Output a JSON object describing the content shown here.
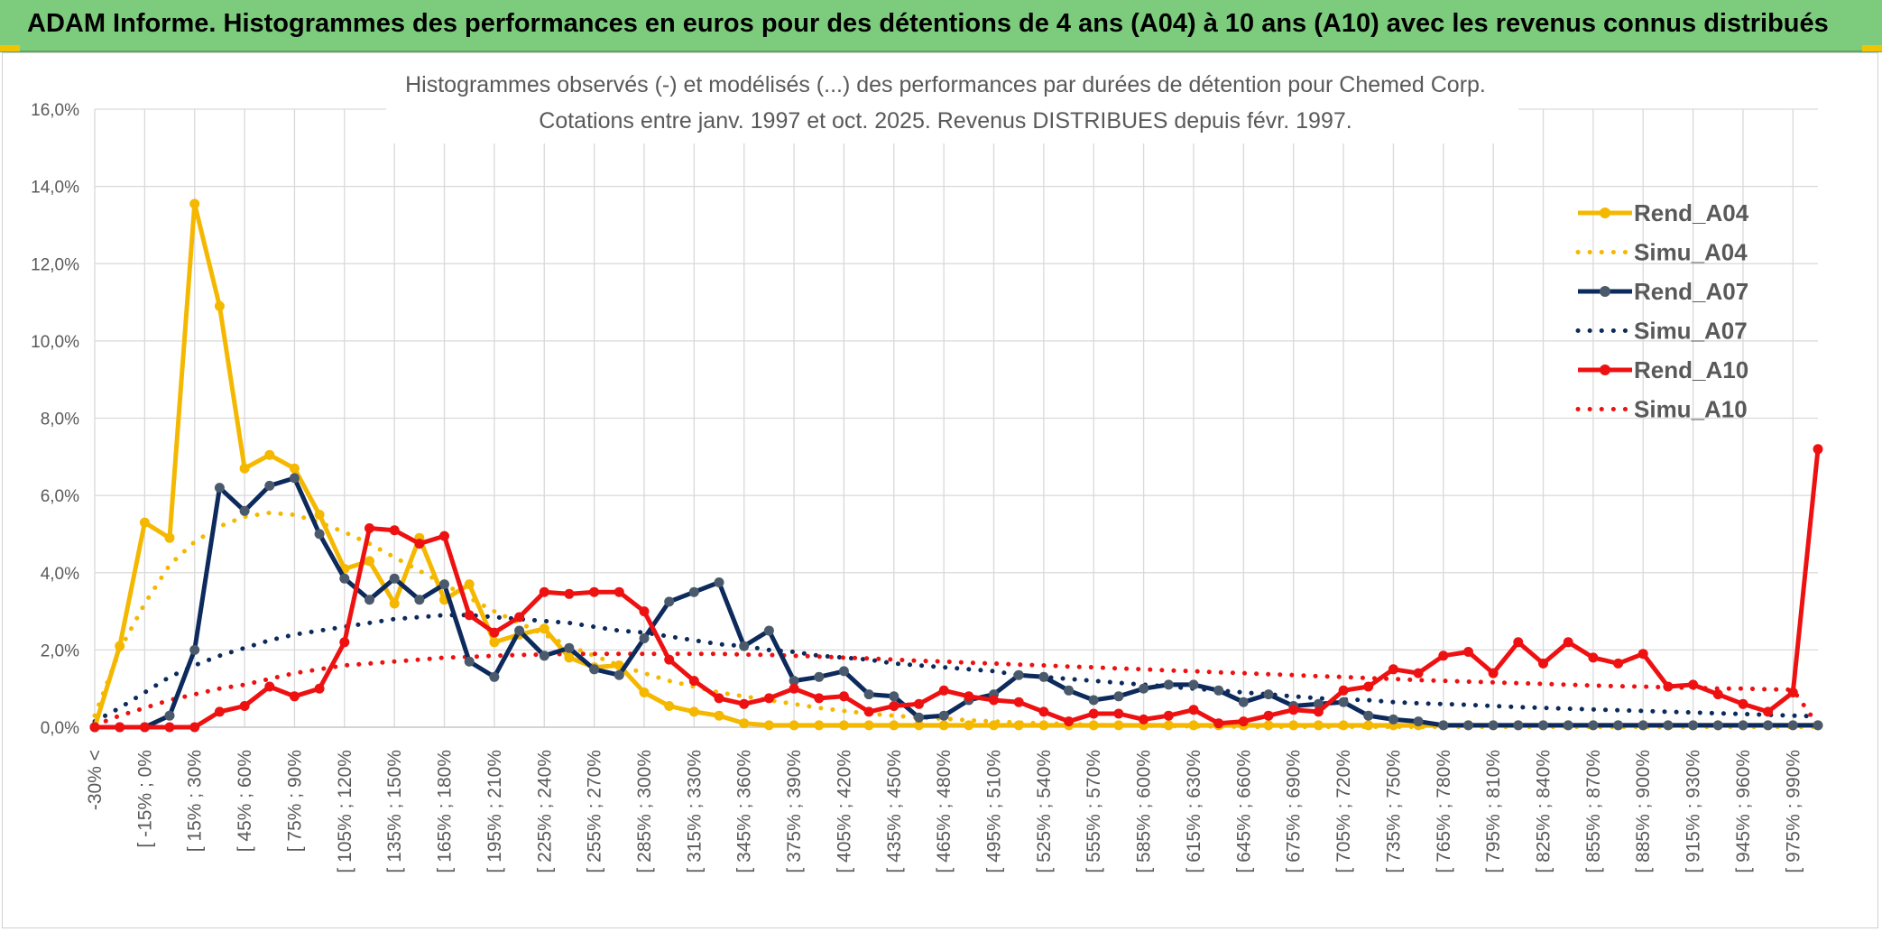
{
  "header": {
    "title": "ADAM Informe. Histogrammes des performances en euros pour des détentions de 4 ans (A04) à 10 ans (A10) avec les revenus connus distribués"
  },
  "colors": {
    "banner": "#7dcc7d",
    "a04": "#f5b800",
    "a07": "#0d2a5c",
    "a07_marker": "#4a5a6c",
    "a10": "#ee1111",
    "grid": "#d9d9d9"
  },
  "chart_data": {
    "type": "line",
    "title_line1": "Histogrammes observés (-) et modélisés (...) des performances par durées de détention pour Chemed Corp.",
    "title_line2": "Cotations entre janv. 1997 et oct. 2025. Revenus DISTRIBUES depuis févr. 1997.",
    "y_ticks": [
      "0,0%",
      "2,0%",
      "4,0%",
      "6,0%",
      "8,0%",
      "10,0%",
      "12,0%",
      "14,0%",
      "16,0%"
    ],
    "ylim": [
      0,
      16
    ],
    "x_labels": [
      "-30% <",
      "[ -15% ; 0%",
      "[ 15% ; 30%",
      "[ 45% ; 60%",
      "[ 75% ; 90%",
      "[ 105% ; 120%",
      "[ 135% ; 150%",
      "[ 165% ; 180%",
      "[ 195% ; 210%",
      "[ 225% ; 240%",
      "[ 255% ; 270%",
      "[ 285% ; 300%",
      "[ 315% ; 330%",
      "[ 345% ; 360%",
      "[ 375% ; 390%",
      "[ 405% ; 420%",
      "[ 435% ; 450%",
      "[ 465% ; 480%",
      "[ 495% ; 510%",
      "[ 525% ; 540%",
      "[ 555% ; 570%",
      "[ 585% ; 600%",
      "[ 615% ; 630%",
      "[ 645% ; 660%",
      "[ 675% ; 690%",
      "[ 705% ; 720%",
      "[ 735% ; 750%",
      "[ 765% ; 780%",
      "[ 795% ; 810%",
      "[ 825% ; 840%",
      "[ 855% ; 870%",
      "[ 885% ; 900%",
      "[ 915% ; 930%",
      "[ 945% ; 960%",
      "[ 975% ; 990%"
    ],
    "n_points": 70,
    "series": [
      {
        "name": "Rend_A04",
        "style": "solid",
        "color": "#f5b800",
        "values": [
          0,
          2.1,
          5.3,
          4.9,
          13.55,
          10.9,
          6.7,
          7.05,
          6.7,
          5.5,
          4.1,
          4.3,
          3.2,
          4.9,
          3.3,
          3.7,
          2.2,
          2.4,
          2.55,
          1.8,
          1.55,
          1.6,
          0.9,
          0.55,
          0.4,
          0.3,
          0.1,
          0.05,
          0.05,
          0.05,
          0.05,
          0.05,
          0.05,
          0.05,
          0.05,
          0.05,
          0.05,
          0.05,
          0.05,
          0.05,
          0.05,
          0.05,
          0.05,
          0.05,
          0.05,
          0.05,
          0.05,
          0.05,
          0.05,
          0.05,
          0.05,
          0.05,
          0.05,
          0.05,
          0.05,
          0.05,
          0.05,
          0.05,
          0.05,
          0.05,
          0.05,
          0.05,
          0.05,
          0.05,
          0.05,
          0.05,
          0.05,
          0.05,
          0.05,
          0.05
        ]
      },
      {
        "name": "Simu_A04",
        "style": "dotted",
        "color": "#f5b800",
        "values": [
          0.3,
          2.0,
          3.2,
          4.2,
          4.8,
          5.2,
          5.45,
          5.55,
          5.5,
          5.3,
          5.05,
          4.75,
          4.4,
          4.05,
          3.7,
          3.35,
          3.0,
          2.7,
          2.4,
          2.1,
          1.85,
          1.6,
          1.4,
          1.2,
          1.05,
          0.9,
          0.8,
          0.7,
          0.6,
          0.5,
          0.42,
          0.35,
          0.3,
          0.25,
          0.22,
          0.18,
          0.15,
          0.12,
          0.1,
          0.08,
          0.06,
          0.05,
          0.04,
          0.03,
          0.02,
          0.02,
          0.01,
          0.01,
          0.01,
          0.01,
          0.01,
          0.01,
          0.01,
          0.01,
          0.01,
          0.01,
          0.01,
          0.01,
          0.01,
          0.01,
          0.01,
          0.01,
          0.01,
          0.01,
          0.01,
          0.01,
          0.01,
          0.01,
          0.01,
          0.01
        ]
      },
      {
        "name": "Rend_A07",
        "style": "solid",
        "color": "#0d2a5c",
        "values": [
          0,
          0,
          0,
          0.3,
          2.0,
          6.2,
          5.6,
          6.25,
          6.45,
          5.0,
          3.85,
          3.3,
          3.85,
          3.3,
          3.7,
          1.7,
          1.3,
          2.5,
          1.85,
          2.05,
          1.5,
          1.35,
          2.3,
          3.25,
          3.5,
          3.75,
          2.1,
          2.5,
          1.2,
          1.3,
          1.45,
          0.85,
          0.8,
          0.25,
          0.3,
          0.7,
          0.85,
          1.35,
          1.3,
          0.95,
          0.7,
          0.8,
          1.0,
          1.1,
          1.1,
          0.95,
          0.65,
          0.85,
          0.55,
          0.6,
          0.65,
          0.3,
          0.2,
          0.15,
          0.05,
          0.05,
          0.05,
          0.05,
          0.05,
          0.05,
          0.05,
          0.05,
          0.05,
          0.05,
          0.05,
          0.05,
          0.05,
          0.05,
          0.05,
          0.05
        ]
      },
      {
        "name": "Simu_A07",
        "style": "dotted",
        "color": "#0d2a5c",
        "values": [
          0.15,
          0.5,
          0.9,
          1.3,
          1.6,
          1.85,
          2.05,
          2.25,
          2.4,
          2.5,
          2.6,
          2.7,
          2.8,
          2.85,
          2.9,
          2.9,
          2.85,
          2.8,
          2.75,
          2.7,
          2.6,
          2.5,
          2.45,
          2.35,
          2.25,
          2.15,
          2.1,
          2.0,
          1.95,
          1.85,
          1.8,
          1.75,
          1.65,
          1.6,
          1.55,
          1.5,
          1.45,
          1.35,
          1.3,
          1.25,
          1.2,
          1.15,
          1.1,
          1.05,
          1.0,
          0.95,
          0.9,
          0.85,
          0.8,
          0.75,
          0.72,
          0.7,
          0.65,
          0.62,
          0.6,
          0.58,
          0.55,
          0.52,
          0.5,
          0.48,
          0.46,
          0.44,
          0.42,
          0.4,
          0.38,
          0.36,
          0.34,
          0.32,
          0.3,
          0.28
        ]
      },
      {
        "name": "Rend_A10",
        "style": "solid",
        "color": "#ee1111",
        "values": [
          0,
          0,
          0,
          0,
          0,
          0.4,
          0.55,
          1.05,
          0.8,
          1.0,
          2.2,
          5.15,
          5.1,
          4.75,
          4.95,
          2.9,
          2.45,
          2.85,
          3.5,
          3.45,
          3.5,
          3.5,
          3.0,
          1.75,
          1.2,
          0.75,
          0.6,
          0.75,
          1.0,
          0.75,
          0.8,
          0.4,
          0.55,
          0.6,
          0.95,
          0.8,
          0.7,
          0.65,
          0.4,
          0.15,
          0.35,
          0.35,
          0.2,
          0.3,
          0.45,
          0.1,
          0.15,
          0.3,
          0.45,
          0.4,
          0.95,
          1.05,
          1.5,
          1.4,
          1.85,
          1.95,
          1.4,
          2.2,
          1.65,
          2.2,
          1.8,
          1.65,
          1.9,
          1.05,
          1.1,
          0.85,
          0.6,
          0.4,
          0.9,
          7.2
        ]
      },
      {
        "name": "Simu_A10",
        "style": "dotted",
        "color": "#ee1111",
        "values": [
          0.05,
          0.3,
          0.5,
          0.7,
          0.85,
          1.0,
          1.1,
          1.25,
          1.4,
          1.5,
          1.6,
          1.65,
          1.7,
          1.75,
          1.8,
          1.82,
          1.85,
          1.87,
          1.88,
          1.9,
          1.9,
          1.9,
          1.9,
          1.9,
          1.9,
          1.9,
          1.88,
          1.87,
          1.85,
          1.83,
          1.8,
          1.78,
          1.75,
          1.72,
          1.7,
          1.67,
          1.65,
          1.62,
          1.6,
          1.57,
          1.55,
          1.52,
          1.5,
          1.47,
          1.45,
          1.42,
          1.4,
          1.37,
          1.35,
          1.32,
          1.3,
          1.27,
          1.25,
          1.22,
          1.2,
          1.18,
          1.16,
          1.14,
          1.12,
          1.1,
          1.08,
          1.06,
          1.05,
          1.03,
          1.02,
          1.0,
          1.0,
          0.98,
          0.97,
          0.05
        ]
      }
    ],
    "legend": [
      "Rend_A04",
      "Simu_A04",
      "Rend_A07",
      "Simu_A07",
      "Rend_A10",
      "Simu_A10"
    ],
    "legend_position": "right"
  }
}
